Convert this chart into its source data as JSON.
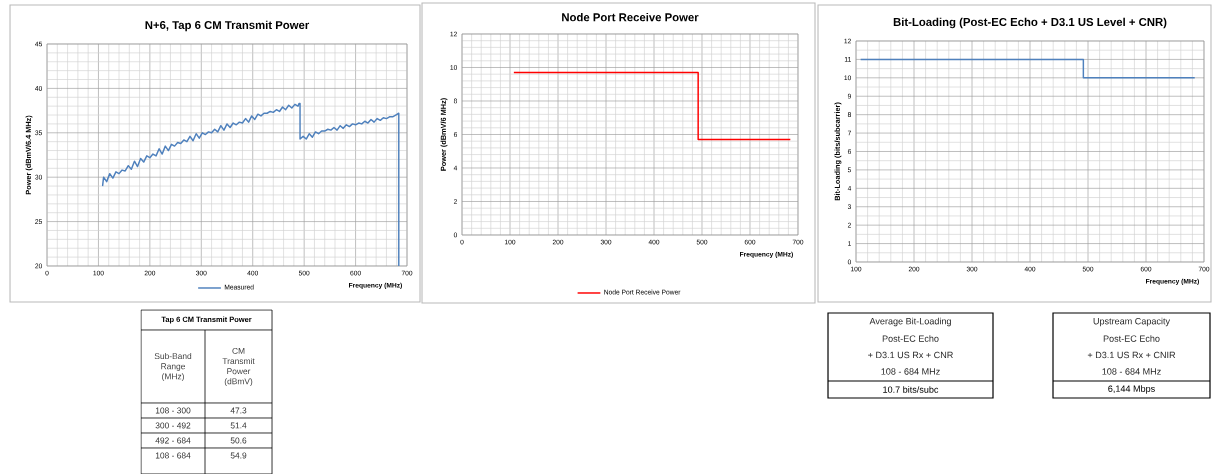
{
  "chart_data": [
    {
      "type": "line",
      "title": "N+6, Tap 6 CM Transmit Power",
      "xlabel": "Frequency (MHz)",
      "ylabel": "Power (dBmV/6.4 MHz)",
      "x": [
        108,
        110,
        116,
        122,
        128,
        134,
        140,
        146,
        152,
        158,
        164,
        170,
        176,
        182,
        188,
        194,
        200,
        206,
        212,
        218,
        224,
        230,
        236,
        242,
        248,
        254,
        260,
        266,
        272,
        278,
        284,
        290,
        296,
        302,
        308,
        314,
        320,
        326,
        332,
        338,
        344,
        350,
        356,
        362,
        368,
        374,
        380,
        386,
        392,
        398,
        404,
        410,
        416,
        422,
        428,
        434,
        440,
        446,
        452,
        458,
        464,
        470,
        476,
        482,
        488,
        490,
        492,
        492,
        498,
        504,
        510,
        516,
        522,
        528,
        534,
        540,
        546,
        552,
        558,
        564,
        570,
        576,
        582,
        588,
        594,
        600,
        606,
        612,
        618,
        624,
        630,
        636,
        642,
        648,
        654,
        660,
        666,
        672,
        678,
        684,
        684
      ],
      "series": [
        {
          "name": "Measured",
          "color": "#4f81bd",
          "values": [
            29.0,
            30.0,
            29.5,
            30.4,
            29.9,
            30.6,
            30.4,
            30.8,
            30.7,
            31.3,
            30.9,
            31.8,
            31.2,
            32.1,
            31.7,
            32.4,
            32.2,
            32.6,
            32.4,
            33.2,
            32.6,
            33.5,
            33.0,
            33.7,
            33.5,
            33.9,
            33.8,
            34.2,
            34.0,
            34.6,
            34.1,
            34.9,
            34.4,
            35.0,
            34.8,
            35.1,
            35.0,
            35.4,
            35.1,
            35.8,
            35.3,
            36.0,
            35.6,
            36.1,
            35.9,
            36.2,
            36.1,
            36.6,
            36.2,
            36.9,
            36.5,
            37.1,
            36.9,
            37.2,
            37.2,
            37.4,
            37.3,
            37.6,
            37.4,
            37.9,
            37.6,
            38.1,
            37.8,
            38.2,
            38.0,
            38.3,
            38.3,
            34.3,
            34.6,
            34.3,
            34.9,
            34.5,
            35.1,
            34.9,
            35.2,
            35.2,
            35.4,
            35.3,
            35.6,
            35.3,
            35.8,
            35.5,
            35.9,
            35.7,
            36.0,
            35.9,
            36.1,
            36.0,
            36.3,
            36.1,
            36.5,
            36.2,
            36.6,
            36.4,
            36.7,
            36.6,
            36.8,
            36.8,
            37.0,
            37.2,
            20
          ]
        }
      ],
      "xlim": [
        0,
        700
      ],
      "ylim": [
        20,
        45
      ],
      "xticks": [
        0,
        100,
        200,
        300,
        400,
        500,
        600,
        700
      ],
      "yticks": [
        20,
        25,
        30,
        35,
        40,
        45
      ],
      "grid": true,
      "legend": "bottom"
    },
    {
      "type": "line",
      "title": "Node Port Receive Power",
      "xlabel": "Frequency (MHz)",
      "ylabel": "Power (dBmV/6 MHz)",
      "x": [
        108,
        492,
        492,
        684
      ],
      "series": [
        {
          "name": "Node Port Receive Power",
          "color": "#ff0000",
          "values": [
            9.7,
            9.7,
            5.7,
            5.7
          ]
        }
      ],
      "xlim": [
        0,
        700
      ],
      "ylim": [
        0,
        12
      ],
      "xticks": [
        0,
        100,
        200,
        300,
        400,
        500,
        600,
        700
      ],
      "yticks": [
        0,
        2,
        4,
        6,
        8,
        10,
        12
      ],
      "grid": true,
      "legend": "bottom"
    },
    {
      "type": "line",
      "title": "Bit-Loading (Post-EC Echo + D3.1 US Level + CNR)",
      "xlabel": "Frequency (MHz)",
      "ylabel": "Bit-Loading (bits/subcarrier)",
      "x": [
        108,
        492,
        492,
        684
      ],
      "series": [
        {
          "color": "#4f81bd",
          "values": [
            11,
            11,
            10,
            10
          ]
        }
      ],
      "xlim": [
        100,
        700
      ],
      "ylim": [
        0,
        12
      ],
      "xticks": [
        100,
        200,
        300,
        400,
        500,
        600,
        700
      ],
      "yticks": [
        0,
        1,
        2,
        3,
        4,
        5,
        6,
        7,
        8,
        9,
        10,
        11,
        12
      ],
      "grid": true
    },
    {
      "type": "other",
      "title": "Tap 6 CM Transmit Power",
      "annotations": [
        "Sub-Band Range (MHz)",
        "CM Transmit Power (dBmV)"
      ],
      "categories": [
        "108 - 300",
        "300 - 492",
        "492 - 684",
        "108 - 684"
      ],
      "values": [
        47.3,
        51.4,
        50.6,
        54.9
      ],
      "data_labels": true
    },
    {
      "type": "other",
      "annotations": [
        "Average Bit-Loading",
        "Post-EC Echo",
        "+ D3.1 US Rx + CNR",
        "108 - 684 MHz",
        "10.7 bits/subc",
        "Upstream Capacity",
        "Post-EC Echo",
        "+ D3.1 US Rx + CNIR",
        "108 - 684 MHz",
        "6,144 Mbps"
      ]
    }
  ]
}
